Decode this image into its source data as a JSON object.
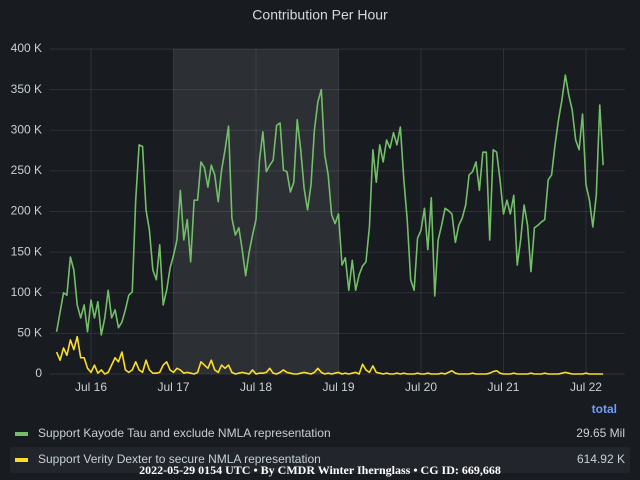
{
  "chart_data": {
    "type": "line",
    "title": "Contribution Per Hour",
    "grid": true,
    "time_region": [
      17,
      19
    ],
    "xlim": [
      15.503,
      22.473
    ],
    "xticks": [
      {
        "value": 16,
        "label": "Jul 16"
      },
      {
        "value": 17,
        "label": "Jul 17"
      },
      {
        "value": 18,
        "label": "Jul 18"
      },
      {
        "value": 19,
        "label": "Jul 19"
      },
      {
        "value": 20,
        "label": "Jul 20"
      },
      {
        "value": 21,
        "label": "Jul 21"
      },
      {
        "value": 22,
        "label": "Jul 22"
      }
    ],
    "ylim": [
      0,
      400000
    ],
    "yticks": [
      {
        "value": 0,
        "label": "0"
      },
      {
        "value": 50000,
        "label": "50 K"
      },
      {
        "value": 100000,
        "label": "100 K"
      },
      {
        "value": 150000,
        "label": "150 K"
      },
      {
        "value": 200000,
        "label": "200 K"
      },
      {
        "value": 250000,
        "label": "250 K"
      },
      {
        "value": 300000,
        "label": "300 K"
      },
      {
        "value": 350000,
        "label": "350 K"
      },
      {
        "value": 400000,
        "label": "400 K"
      }
    ],
    "legend_header": "total",
    "x": [
      15.583,
      15.625,
      15.667,
      15.708,
      15.75,
      15.792,
      15.833,
      15.875,
      15.917,
      15.958,
      16,
      16.042,
      16.083,
      16.125,
      16.167,
      16.208,
      16.25,
      16.292,
      16.333,
      16.375,
      16.417,
      16.458,
      16.5,
      16.542,
      16.583,
      16.625,
      16.667,
      16.708,
      16.75,
      16.792,
      16.833,
      16.875,
      16.917,
      16.958,
      17,
      17.042,
      17.083,
      17.125,
      17.167,
      17.208,
      17.25,
      17.292,
      17.333,
      17.375,
      17.417,
      17.458,
      17.5,
      17.542,
      17.583,
      17.625,
      17.667,
      17.708,
      17.75,
      17.792,
      17.833,
      17.875,
      17.917,
      17.958,
      18,
      18.042,
      18.083,
      18.125,
      18.167,
      18.208,
      18.25,
      18.292,
      18.333,
      18.375,
      18.417,
      18.458,
      18.5,
      18.542,
      18.583,
      18.625,
      18.667,
      18.708,
      18.75,
      18.792,
      18.833,
      18.875,
      18.917,
      18.958,
      19,
      19.042,
      19.083,
      19.125,
      19.167,
      19.208,
      19.25,
      19.292,
      19.333,
      19.375,
      19.417,
      19.458,
      19.5,
      19.542,
      19.583,
      19.625,
      19.667,
      19.708,
      19.75,
      19.792,
      19.833,
      19.875,
      19.917,
      19.958,
      20,
      20.042,
      20.083,
      20.125,
      20.167,
      20.208,
      20.25,
      20.292,
      20.333,
      20.375,
      20.417,
      20.458,
      20.5,
      20.542,
      20.583,
      20.625,
      20.667,
      20.708,
      20.75,
      20.792,
      20.833,
      20.875,
      20.917,
      20.958,
      21,
      21.042,
      21.083,
      21.125,
      21.167,
      21.208,
      21.25,
      21.292,
      21.333,
      21.375,
      21.417,
      21.458,
      21.5,
      21.542,
      21.583,
      21.625,
      21.667,
      21.708,
      21.75,
      21.792,
      21.833,
      21.875,
      21.917,
      21.958,
      22,
      22.042,
      22.083,
      22.125,
      22.167,
      22.208
    ],
    "series": [
      {
        "name": "Support Kayode Tau and exclude NMLA representation",
        "color": "#73bf69",
        "total": "29.65 Mil",
        "values": [
          52000,
          76000,
          100000,
          97000,
          144000,
          128000,
          85000,
          69000,
          85000,
          52000,
          91000,
          69000,
          89000,
          48000,
          69000,
          103000,
          69000,
          79000,
          57000,
          64000,
          79000,
          97000,
          101000,
          214000,
          282000,
          280000,
          202000,
          177000,
          128000,
          116000,
          159000,
          85000,
          103000,
          130000,
          146000,
          165000,
          226000,
          165000,
          190000,
          138000,
          214000,
          214000,
          261000,
          254000,
          230000,
          257000,
          245000,
          212000,
          251000,
          276000,
          305000,
          192000,
          171000,
          180000,
          153000,
          121000,
          150000,
          171000,
          190000,
          263000,
          298000,
          249000,
          257000,
          263000,
          306000,
          309000,
          251000,
          249000,
          224000,
          236000,
          313000,
          276000,
          229000,
          202000,
          233000,
          300000,
          335000,
          350000,
          270000,
          245000,
          196000,
          185000,
          197000,
          134000,
          143000,
          103000,
          140000,
          103000,
          122000,
          133000,
          138000,
          181000,
          276000,
          236000,
          282000,
          261000,
          288000,
          278000,
          297000,
          282000,
          304000,
          239000,
          190000,
          116000,
          103000,
          167000,
          177000,
          204000,
          153000,
          217000,
          96000,
          165000,
          183000,
          204000,
          201000,
          197000,
          162000,
          183000,
          192000,
          208000,
          245000,
          249000,
          261000,
          226000,
          273000,
          273000,
          165000,
          276000,
          273000,
          239000,
          197000,
          214000,
          197000,
          220000,
          134000,
          165000,
          208000,
          183000,
          126000,
          180000,
          183000,
          187000,
          190000,
          239000,
          245000,
          282000,
          313000,
          337000,
          368000,
          343000,
          325000,
          288000,
          276000,
          320000,
          233000,
          214000,
          181000,
          220000,
          331000,
          257000
        ]
      },
      {
        "name": "Support Verity Dexter to secure NMLA representation",
        "color": "#fade2a",
        "total": "614.92 K",
        "values": [
          27000,
          17000,
          32000,
          23000,
          42000,
          30000,
          46000,
          20000,
          20000,
          7000,
          2000,
          11000,
          1000,
          5000,
          0,
          2000,
          11000,
          20000,
          15000,
          27000,
          5000,
          2000,
          5000,
          15000,
          5000,
          2000,
          17000,
          5000,
          1000,
          1000,
          2000,
          11000,
          15000,
          5000,
          2000,
          7000,
          5000,
          1000,
          2000,
          1000,
          0,
          2000,
          15000,
          11000,
          7000,
          17000,
          5000,
          2000,
          11000,
          7000,
          11000,
          2000,
          0,
          1000,
          2000,
          1000,
          0,
          5000,
          0,
          1000,
          1000,
          2000,
          7000,
          1000,
          0,
          2000,
          5000,
          2000,
          1000,
          0,
          0,
          1000,
          2000,
          1000,
          0,
          2000,
          7000,
          2000,
          0,
          1000,
          0,
          1000,
          2000,
          0,
          1000,
          0,
          1000,
          2000,
          0,
          12000,
          5000,
          2000,
          10000,
          2000,
          1000,
          0,
          1000,
          0,
          0,
          1000,
          0,
          1000,
          0,
          0,
          0,
          1000,
          0,
          0,
          1000,
          0,
          0,
          0,
          1000,
          0,
          2000,
          4000,
          1000,
          0,
          0,
          0,
          0,
          1000,
          0,
          0,
          0,
          0,
          1000,
          3000,
          4000,
          1000,
          0,
          0,
          0,
          1000,
          0,
          0,
          0,
          0,
          1000,
          0,
          0,
          0,
          1000,
          0,
          0,
          0,
          0,
          1000,
          2000,
          1000,
          0,
          0,
          0,
          0,
          1000,
          0,
          0,
          0,
          0,
          0
        ]
      }
    ]
  },
  "footer": "2022-05-29 0154 UTC • By CMDR Winter Ihernglass • CG ID: 669,668"
}
